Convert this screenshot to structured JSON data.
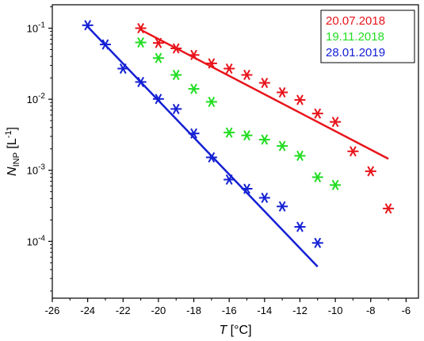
{
  "chart_data": {
    "type": "scatter",
    "xlabel": {
      "main": "T",
      "unit": " [°C]"
    },
    "ylabel": {
      "main": "N",
      "sub": "INP",
      "unit": " [L",
      "exp": "-1",
      "close": "]"
    },
    "xlim": [
      -26,
      -5.3
    ],
    "ylim_log10": [
      -4.8,
      -0.67
    ],
    "log_y": true,
    "x_ticks": [
      -26,
      -24,
      -22,
      -20,
      -18,
      -16,
      -14,
      -12,
      -10,
      -8,
      -6
    ],
    "y_ticks": [
      {
        "base": "10",
        "exp": "-4",
        "value": 0.0001
      },
      {
        "base": "10",
        "exp": "-3",
        "value": 0.001
      },
      {
        "base": "10",
        "exp": "-2",
        "value": 0.01
      },
      {
        "base": "10",
        "exp": "-1",
        "value": 0.1
      }
    ],
    "legend_position": "top-right",
    "series": [
      {
        "name": "20.07.2018",
        "color": "#e8141b",
        "points": [
          [
            -21,
            0.1
          ],
          [
            -20,
            0.062
          ],
          [
            -19,
            0.052
          ],
          [
            -18,
            0.042
          ],
          [
            -17,
            0.032
          ],
          [
            -16,
            0.027
          ],
          [
            -15,
            0.022
          ],
          [
            -14,
            0.017
          ],
          [
            -13,
            0.0125
          ],
          [
            -12,
            0.0098
          ],
          [
            -11,
            0.0063
          ],
          [
            -10,
            0.0048
          ],
          [
            -9,
            0.00185
          ],
          [
            -8,
            0.00097
          ],
          [
            -7,
            0.00029
          ]
        ],
        "fit": [
          [
            -21,
            0.095
          ],
          [
            -7,
            0.00145
          ]
        ]
      },
      {
        "name": "19.11.2018",
        "color": "#22dd22",
        "points": [
          [
            -21,
            0.063
          ],
          [
            -20,
            0.038
          ],
          [
            -19,
            0.022
          ],
          [
            -18,
            0.014
          ],
          [
            -17,
            0.0092
          ],
          [
            -16,
            0.0034
          ],
          [
            -15,
            0.0031
          ],
          [
            -14,
            0.0027
          ],
          [
            -13,
            0.0022
          ],
          [
            -12,
            0.0016
          ],
          [
            -11,
            0.0008
          ],
          [
            -10,
            0.00062
          ]
        ]
      },
      {
        "name": "28.01.2019",
        "color": "#1420d4",
        "points": [
          [
            -24,
            0.11
          ],
          [
            -23,
            0.059
          ],
          [
            -22,
            0.027
          ],
          [
            -21,
            0.0175
          ],
          [
            -20,
            0.0101
          ],
          [
            -19,
            0.0073
          ],
          [
            -18,
            0.0033
          ],
          [
            -17,
            0.00152
          ],
          [
            -16,
            0.00074
          ],
          [
            -15,
            0.00055
          ],
          [
            -14,
            0.00041
          ],
          [
            -13,
            0.00031
          ],
          [
            -12,
            0.00016
          ],
          [
            -11,
            9.5e-05
          ]
        ],
        "fit": [
          [
            -24,
            0.105
          ],
          [
            -11,
            4.4e-05
          ]
        ]
      }
    ]
  }
}
